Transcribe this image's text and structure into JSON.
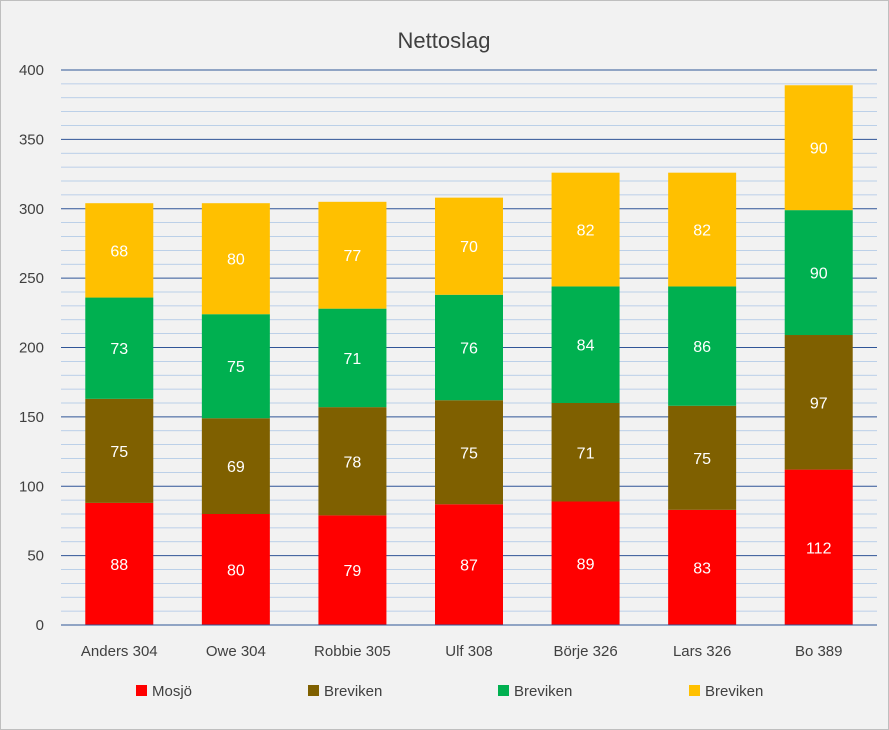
{
  "chart_data": {
    "type": "bar",
    "stacked": true,
    "title": "Nettoslag",
    "xlabel": "",
    "ylabel": "",
    "ylim": [
      0,
      400
    ],
    "y_major_step": 50,
    "y_minor_step": 10,
    "y_ticks": [
      "0",
      "50",
      "100",
      "150",
      "200",
      "250",
      "300",
      "350",
      "400"
    ],
    "grid": true,
    "legend_position": "bottom",
    "categories": [
      "Anders 304",
      "Owe 304",
      "Robbie 305",
      "Ulf 308",
      "Börje 326",
      "Lars 326",
      "Bo 389"
    ],
    "series": [
      {
        "name": "Mosjö",
        "color": "#ff0000",
        "values": [
          88,
          80,
          79,
          87,
          89,
          83,
          112
        ]
      },
      {
        "name": "Breviken",
        "color": "#7f6000",
        "values": [
          75,
          69,
          78,
          75,
          71,
          75,
          97
        ]
      },
      {
        "name": "Breviken",
        "color": "#00b050",
        "values": [
          73,
          75,
          71,
          76,
          84,
          86,
          90
        ]
      },
      {
        "name": "Breviken",
        "color": "#ffc000",
        "values": [
          68,
          80,
          77,
          70,
          82,
          82,
          90
        ]
      }
    ]
  }
}
